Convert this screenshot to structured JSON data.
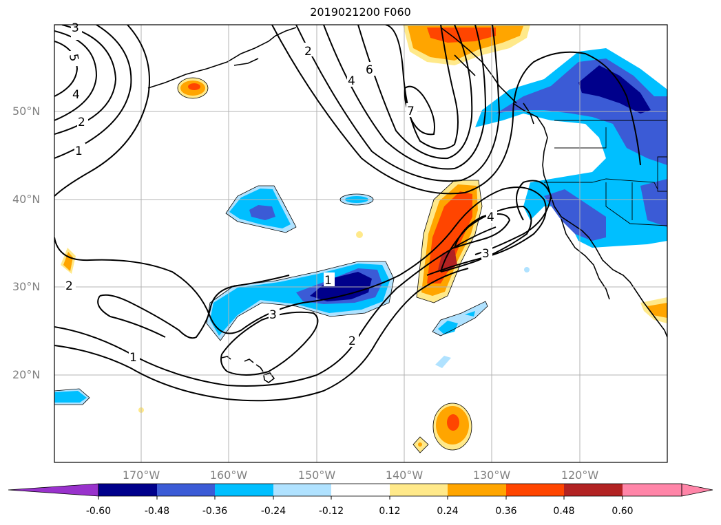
{
  "title": "2019021200 F060",
  "map": {
    "lat_labels": [
      "50°N",
      "40°N",
      "30°N",
      "20°N"
    ],
    "lon_labels": [
      "170°W",
      "160°W",
      "150°W",
      "140°W",
      "130°W",
      "120°W"
    ],
    "contour_labels": [
      "5",
      "4",
      "2",
      "1",
      "3",
      "2",
      "4",
      "6",
      "7",
      "4",
      "3",
      "1",
      "3",
      "2",
      "1",
      "2"
    ],
    "filled_colors": {
      "deep_blue": "#00008b",
      "mid_blue": "#3b5bd6",
      "light_blue": "#00bfff",
      "pale_blue": "#b0e2ff",
      "pale_yellow": "#ffe98a",
      "orange": "#ffa500",
      "red_orange": "#ff4500",
      "dark_red": "#b22222"
    }
  },
  "colorbar": {
    "ticks": [
      "-0.60",
      "-0.48",
      "-0.36",
      "-0.24",
      "-0.12",
      "0.12",
      "0.24",
      "0.36",
      "0.48",
      "0.60"
    ],
    "colors": [
      "#9932cc",
      "#00008b",
      "#3b5bd6",
      "#00bfff",
      "#b0e2ff",
      "#ffffff",
      "#ffe98a",
      "#ffa500",
      "#ff4500",
      "#b22222",
      "#ff85a8"
    ]
  }
}
